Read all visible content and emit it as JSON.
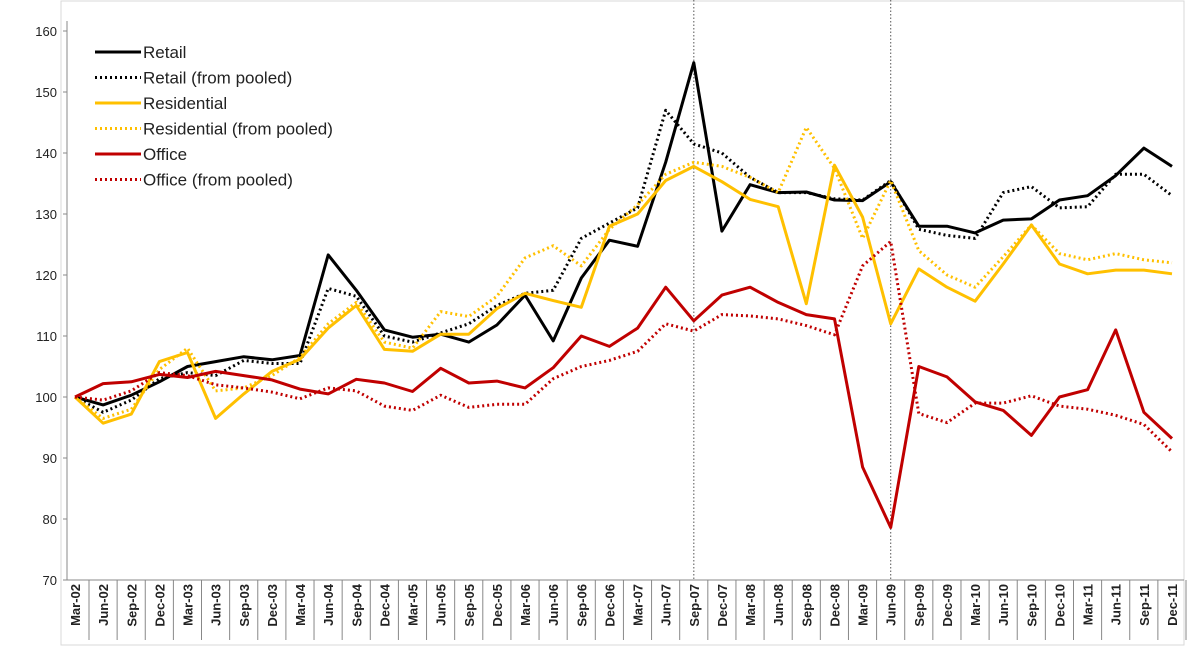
{
  "chart_data": {
    "type": "line",
    "categories": [
      "Mar-02",
      "Jun-02",
      "Sep-02",
      "Dec-02",
      "Mar-03",
      "Jun-03",
      "Sep-03",
      "Dec-03",
      "Mar-04",
      "Jun-04",
      "Sep-04",
      "Dec-04",
      "Mar-05",
      "Jun-05",
      "Sep-05",
      "Dec-05",
      "Mar-06",
      "Jun-06",
      "Sep-06",
      "Dec-06",
      "Mar-07",
      "Jun-07",
      "Sep-07",
      "Dec-07",
      "Mar-08",
      "Jun-08",
      "Sep-08",
      "Dec-08",
      "Mar-09",
      "Jun-09",
      "Sep-09",
      "Dec-09",
      "Mar-10",
      "Jun-10",
      "Sep-10",
      "Dec-10",
      "Mar-11",
      "Jun-11",
      "Sep-11",
      "Dec-11"
    ],
    "series": [
      {
        "name": "Retail",
        "color": "#000000",
        "style": "solid",
        "values": [
          100,
          98.7,
          100.3,
          102.5,
          105,
          105.8,
          106.6,
          106.1,
          106.8,
          123.3,
          117.5,
          111,
          109.8,
          110.3,
          109,
          111.8,
          116.7,
          109.2,
          119.5,
          125.7,
          124.7,
          138.5,
          154.8,
          127.2,
          134.8,
          133.5,
          133.6,
          132.3,
          132.2,
          135.3,
          128,
          128,
          126.9,
          129,
          129.2,
          132.3,
          133,
          136.3,
          140.8,
          137.8
        ]
      },
      {
        "name": "Retail (from pooled)",
        "color": "#000000",
        "style": "dotted",
        "values": [
          100,
          97.5,
          99.5,
          103,
          104,
          103.5,
          106,
          105.5,
          105.5,
          117.8,
          116.5,
          110,
          109,
          110.5,
          112,
          115,
          117,
          117.5,
          126,
          128.5,
          131,
          147,
          141.5,
          140,
          136,
          133.5,
          133.5,
          132.5,
          132.3,
          135.5,
          127.5,
          126.5,
          126,
          133.5,
          134.5,
          131,
          131.2,
          136.5,
          136.5,
          133
        ]
      },
      {
        "name": "Residential",
        "color": "#ffc000",
        "style": "solid",
        "values": [
          100,
          95.7,
          97.2,
          105.8,
          107.3,
          96.5,
          100.5,
          104.2,
          106.2,
          111.3,
          115,
          107.8,
          107.5,
          110.3,
          110.3,
          114.5,
          117,
          115.8,
          114.7,
          128,
          130,
          135.5,
          137.8,
          135.3,
          132.4,
          131.2,
          115.3,
          138,
          129.5,
          112,
          121,
          118,
          115.7,
          121.8,
          128.2,
          121.8,
          120.2,
          120.8,
          120.8,
          120.2
        ]
      },
      {
        "name": "Residential (from pooled)",
        "color": "#ffc000",
        "style": "dotted",
        "values": [
          100,
          96.5,
          98,
          104.5,
          108,
          101,
          101.5,
          103.5,
          106.5,
          112,
          115.5,
          109,
          108,
          114,
          113.2,
          116.5,
          122.8,
          124.8,
          121.5,
          127.5,
          131.5,
          136.5,
          138.5,
          137.8,
          136,
          133.5,
          144.2,
          137.5,
          126,
          135.5,
          124,
          120,
          118,
          123,
          128.2,
          123.5,
          122.5,
          123.5,
          122.5,
          122
        ]
      },
      {
        "name": "Office",
        "color": "#c00000",
        "style": "solid",
        "values": [
          100,
          102.2,
          102.5,
          103.7,
          103.2,
          104.2,
          103.5,
          102.8,
          101.3,
          100.5,
          102.9,
          102.3,
          100.9,
          104.7,
          102.3,
          102.6,
          101.5,
          104.8,
          110,
          108.3,
          111.3,
          118,
          112.5,
          116.7,
          118,
          115.5,
          113.5,
          112.8,
          88.5,
          78.6,
          105,
          103.3,
          99.2,
          97.8,
          93.7,
          100,
          101.2,
          111,
          97.5,
          93.2
        ]
      },
      {
        "name": "Office (from pooled)",
        "color": "#c00000",
        "style": "dotted",
        "values": [
          100,
          99.5,
          101,
          104,
          103.5,
          102,
          101.5,
          100.8,
          99.7,
          101.5,
          101,
          98.5,
          97.8,
          100.3,
          98.3,
          98.8,
          98.8,
          103,
          105,
          106,
          107.5,
          112,
          110.8,
          113.5,
          113.3,
          112.8,
          111.7,
          110.2,
          121.5,
          125.5,
          97.3,
          95.8,
          99,
          99,
          100.2,
          98.5,
          98,
          97,
          95.5,
          91
        ]
      }
    ],
    "reference_lines": [
      "Sep-07",
      "Jun-09"
    ],
    "ylim": [
      70,
      160
    ],
    "yticks": [
      70,
      80,
      90,
      100,
      110,
      120,
      130,
      140,
      150,
      160
    ],
    "grid": false,
    "legend": "upper left"
  }
}
